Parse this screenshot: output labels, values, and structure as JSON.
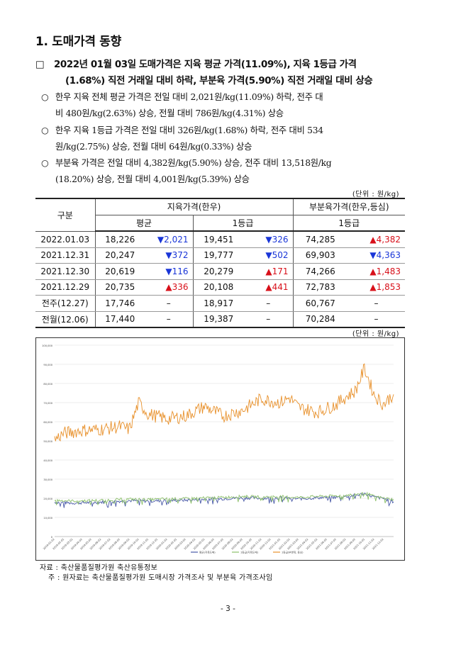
{
  "section": {
    "title": "1. 도매가격 동향"
  },
  "headline": {
    "marker": "□",
    "line1": "2022년 01월 03일 도매가격은 지육 평균 가격(11.09%), 지육 1등급 가격",
    "line2": "(1.68%) 직전 거래일 대비 하락, 부분육 가격(5.90%) 직전 거래일 대비 상승"
  },
  "bullets": [
    {
      "marker": "○",
      "line1": "한우 지육 전체 평균 가격은 전일 대비 2,021원/kg(11.09%) 하락, 전주 대",
      "line2": "비 480원/kg(2.63%) 상승, 전월 대비 786원/kg(4.31%) 상승"
    },
    {
      "marker": "○",
      "line1": "한우 지육 1등급 가격은 전일 대비 326원/kg(1.68%) 하락, 전주 대비 534",
      "line2": "원/kg(2.75%) 상승, 전월 대비 64원/kg(0.33%) 상승"
    },
    {
      "marker": "○",
      "line1": "부분육 가격은 전일 대비 4,382원/kg(5.90%) 상승, 전주 대비 13,518원/kg",
      "line2": "(18.20%) 상승, 전월 대비 4,001원/kg(5.39%) 상승"
    }
  ],
  "table": {
    "unit": "(단위 : 원/kg)",
    "header": {
      "category": "구분",
      "group1": "지육가격(한우)",
      "group2": "부분육가격(한우,등심)",
      "sub1": "평균",
      "sub2": "1등급",
      "sub3": "1등급"
    },
    "rows": [
      {
        "label": "2022.01.03",
        "v1": "18,226",
        "d1": "▼2,021",
        "d1dir": "down",
        "v2": "19,451",
        "d2": "▼326",
        "d2dir": "down",
        "v3": "74,285",
        "d3": "▲4,382",
        "d3dir": "up"
      },
      {
        "label": "2021.12.31",
        "v1": "20,247",
        "d1": "▼372",
        "d1dir": "down",
        "v2": "19,777",
        "d2": "▼502",
        "d2dir": "down",
        "v3": "69,903",
        "d3": "▼4,363",
        "d3dir": "down"
      },
      {
        "label": "2021.12.30",
        "v1": "20,619",
        "d1": "▼116",
        "d1dir": "down",
        "v2": "20,279",
        "d2": "▲171",
        "d2dir": "up",
        "v3": "74,266",
        "d3": "▲1,483",
        "d3dir": "up"
      },
      {
        "label": "2021.12.29",
        "v1": "20,735",
        "d1": "▲336",
        "d1dir": "up",
        "v2": "20,108",
        "d2": "▲441",
        "d2dir": "up",
        "v3": "72,783",
        "d3": "▲1,853",
        "d3dir": "up"
      },
      {
        "label": "전주(12.27)",
        "v1": "17,746",
        "d1": "–",
        "d1dir": "none",
        "v2": "18,917",
        "d2": "–",
        "d2dir": "none",
        "v3": "60,767",
        "d3": "–",
        "d3dir": "none"
      },
      {
        "label": "전월(12.06)",
        "v1": "17,440",
        "d1": "–",
        "d1dir": "none",
        "v2": "19,387",
        "d2": "–",
        "d2dir": "none",
        "v3": "70,284",
        "d3": "–",
        "d3dir": "none"
      }
    ]
  },
  "chart": {
    "unit": "(단위 : 원/kg)"
  },
  "chart_data": {
    "type": "line",
    "ylim": [
      0,
      100000
    ],
    "yticks": [
      "0",
      "10,000",
      "20,000",
      "30,000",
      "40,000",
      "50,000",
      "60,000",
      "70,000",
      "80,000",
      "90,000",
      "100,000"
    ],
    "grid": true,
    "legend_position": "bottom",
    "xticks": [
      "2019-01-02",
      "2019-02-02",
      "2019-03-02",
      "2019-04-02",
      "2019-05-02",
      "2019-06-02",
      "2019-07-02",
      "2019-08-02",
      "2019-09-02",
      "2019-10-02",
      "2019-11-02",
      "2019-12-02",
      "2020-01-02",
      "2020-02-02",
      "2020-03-02",
      "2020-04-02",
      "2020-05-02",
      "2020-06-02",
      "2020-07-02",
      "2020-08-02",
      "2020-09-02",
      "2020-10-02",
      "2020-11-02",
      "2020-12-02",
      "2021-01-02",
      "2021-02-02",
      "2021-03-02",
      "2021-04-02",
      "2021-05-02",
      "2021-06-02",
      "2021-07-02",
      "2021-08-02",
      "2021-09-02",
      "2021-10-02",
      "2021-11-02",
      "2021-12-02"
    ],
    "x_start": "2019-01-02",
    "x_end": "2022-01-03",
    "series": [
      {
        "name": "평균(지육도매)",
        "color": "#4a5aa8",
        "points": [
          [
            "2019-01",
            18000
          ],
          [
            "2019-03",
            17500
          ],
          [
            "2019-05",
            17800
          ],
          [
            "2019-07",
            18200
          ],
          [
            "2019-09",
            18800
          ],
          [
            "2019-11",
            18500
          ],
          [
            "2020-01",
            18900
          ],
          [
            "2020-03",
            19000
          ],
          [
            "2020-05",
            19500
          ],
          [
            "2020-07",
            19800
          ],
          [
            "2020-09",
            20300
          ],
          [
            "2020-11",
            20000
          ],
          [
            "2021-01",
            20200
          ],
          [
            "2021-03",
            19700
          ],
          [
            "2021-05",
            20300
          ],
          [
            "2021-07",
            20500
          ],
          [
            "2021-09",
            21500
          ],
          [
            "2021-10",
            22500
          ],
          [
            "2021-11",
            20600
          ],
          [
            "2021-12",
            19900
          ],
          [
            "2022-01",
            18226
          ]
        ]
      },
      {
        "name": "1등급(지육도매)",
        "color": "#8cc06a",
        "points": [
          [
            "2019-01",
            19000
          ],
          [
            "2019-03",
            18600
          ],
          [
            "2019-05",
            18800
          ],
          [
            "2019-07",
            19200
          ],
          [
            "2019-09",
            19600
          ],
          [
            "2019-11",
            19300
          ],
          [
            "2020-01",
            19700
          ],
          [
            "2020-03",
            19800
          ],
          [
            "2020-05",
            20200
          ],
          [
            "2020-07",
            20500
          ],
          [
            "2020-09",
            21000
          ],
          [
            "2020-11",
            20700
          ],
          [
            "2021-01",
            20900
          ],
          [
            "2021-03",
            20400
          ],
          [
            "2021-05",
            21000
          ],
          [
            "2021-07",
            21200
          ],
          [
            "2021-09",
            22000
          ],
          [
            "2021-10",
            22800
          ],
          [
            "2021-11",
            21000
          ],
          [
            "2021-12",
            20100
          ],
          [
            "2022-01",
            19451
          ]
        ]
      },
      {
        "name": "1등급(부분육, 등심)",
        "color": "#e8912c",
        "points": [
          [
            "2019-01",
            50500
          ],
          [
            "2019-02",
            54000
          ],
          [
            "2019-04",
            55500
          ],
          [
            "2019-06",
            56000
          ],
          [
            "2019-08",
            57500
          ],
          [
            "2019-09",
            56000
          ],
          [
            "2019-10",
            70000
          ],
          [
            "2019-11",
            64000
          ],
          [
            "2020-01",
            61500
          ],
          [
            "2020-03",
            63000
          ],
          [
            "2020-05",
            68000
          ],
          [
            "2020-07",
            63000
          ],
          [
            "2020-09",
            66000
          ],
          [
            "2020-11",
            72000
          ],
          [
            "2021-01",
            70000
          ],
          [
            "2021-02",
            72500
          ],
          [
            "2021-03",
            67500
          ],
          [
            "2021-05",
            65000
          ],
          [
            "2021-07",
            69000
          ],
          [
            "2021-08",
            73000
          ],
          [
            "2021-09",
            76000
          ],
          [
            "2021-10",
            88000
          ],
          [
            "2021-11",
            74000
          ],
          [
            "2021-12",
            69000
          ],
          [
            "2022-01",
            74285
          ]
        ]
      }
    ]
  },
  "source": {
    "line1": "자료 : 축산물품질평가원 축산유통정보",
    "line2": "주 : 원자료는 축산물품질평가원 도매시장 가격조사 및 부분육 가격조사임"
  },
  "page": {
    "number": "- 3 -"
  }
}
